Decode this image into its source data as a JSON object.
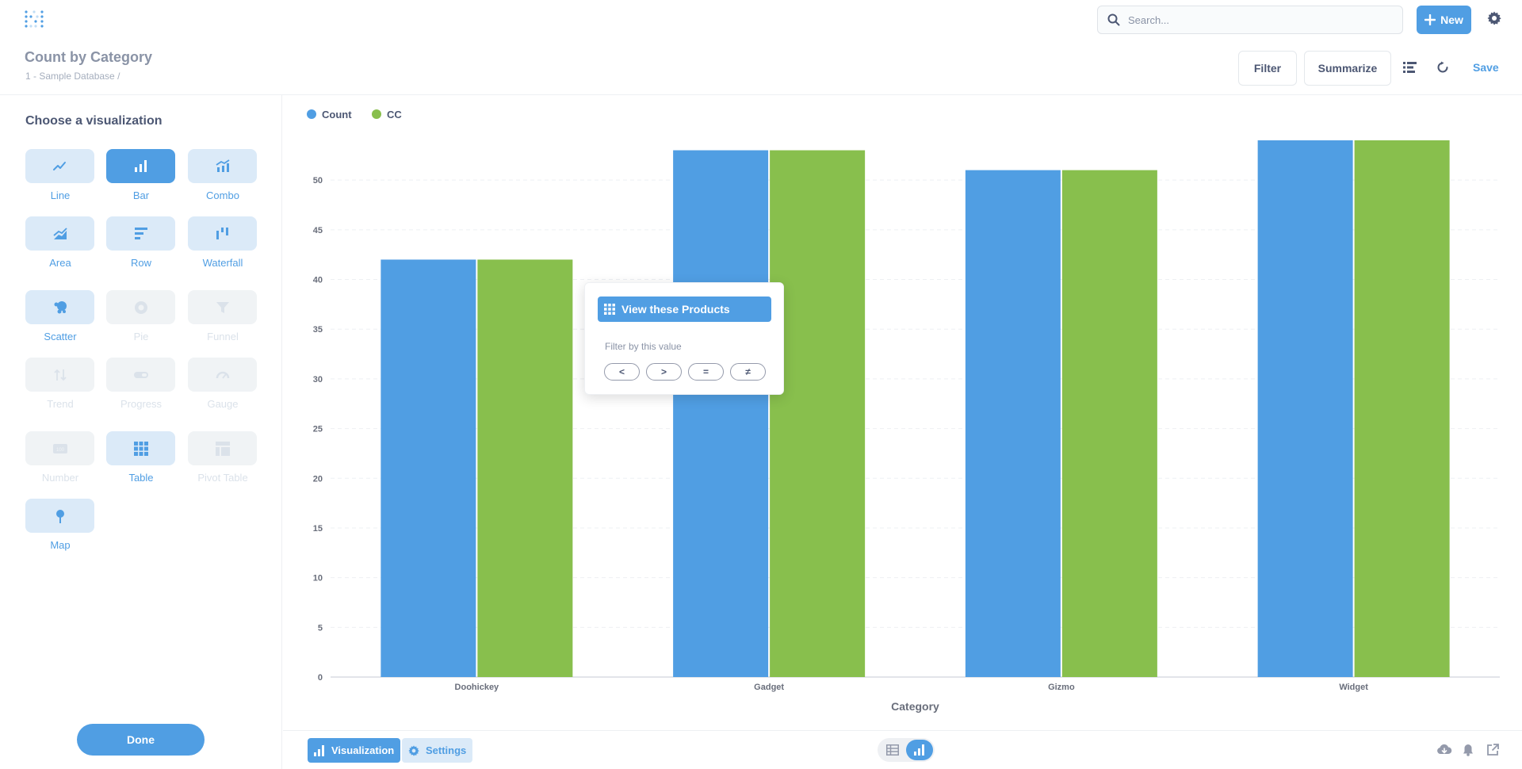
{
  "app": {
    "search_placeholder": "Search...",
    "new_label": "New"
  },
  "header": {
    "title": "Count by Category",
    "breadcrumb": "1 - Sample Database  /",
    "filter_label": "Filter",
    "summarize_label": "Summarize",
    "save_label": "Save"
  },
  "sidebar": {
    "title": "Choose a visualization",
    "items": [
      {
        "label": "Line",
        "icon": "line-chart-icon",
        "state": "normal"
      },
      {
        "label": "Bar",
        "icon": "bar-chart-icon",
        "state": "active"
      },
      {
        "label": "Combo",
        "icon": "combo-chart-icon",
        "state": "normal"
      },
      {
        "label": "Area",
        "icon": "area-chart-icon",
        "state": "normal"
      },
      {
        "label": "Row",
        "icon": "row-chart-icon",
        "state": "normal"
      },
      {
        "label": "Waterfall",
        "icon": "waterfall-chart-icon",
        "state": "normal"
      },
      {
        "label": "Scatter",
        "icon": "scatter-chart-icon",
        "state": "normal"
      },
      {
        "label": "Pie",
        "icon": "pie-chart-icon",
        "state": "disabled"
      },
      {
        "label": "Funnel",
        "icon": "funnel-icon",
        "state": "disabled"
      },
      {
        "label": "Trend",
        "icon": "trend-icon",
        "state": "disabled"
      },
      {
        "label": "Progress",
        "icon": "progress-icon",
        "state": "disabled"
      },
      {
        "label": "Gauge",
        "icon": "gauge-icon",
        "state": "disabled"
      },
      {
        "label": "Number",
        "icon": "number-icon",
        "state": "disabled"
      },
      {
        "label": "Table",
        "icon": "table-icon",
        "state": "normal"
      },
      {
        "label": "Pivot Table",
        "icon": "pivot-table-icon",
        "state": "disabled"
      },
      {
        "label": "Map",
        "icon": "map-pin-icon",
        "state": "normal"
      }
    ],
    "done_label": "Done"
  },
  "footer": {
    "visualization_label": "Visualization",
    "settings_label": "Settings"
  },
  "popover": {
    "action_label": "View these Products",
    "filter_label": "Filter by this value",
    "operators": [
      "<",
      ">",
      "=",
      "≠"
    ]
  },
  "colors": {
    "accent": "#509ee3",
    "series_count": "#509ee3",
    "series_cc": "#88bf4d"
  },
  "chart_data": {
    "type": "bar",
    "categories": [
      "Doohickey",
      "Gadget",
      "Gizmo",
      "Widget"
    ],
    "series": [
      {
        "name": "Count",
        "values": [
          42,
          53,
          51,
          54
        ],
        "color": "#509ee3"
      },
      {
        "name": "CC",
        "values": [
          42,
          53,
          51,
          54
        ],
        "color": "#88bf4d"
      }
    ],
    "title": "",
    "xlabel": "Category",
    "ylabel": "",
    "ylim": [
      0,
      54
    ],
    "yticks": [
      0,
      5,
      10,
      15,
      20,
      25,
      30,
      35,
      40,
      45,
      50
    ],
    "grid": true,
    "legend": "top-left"
  }
}
